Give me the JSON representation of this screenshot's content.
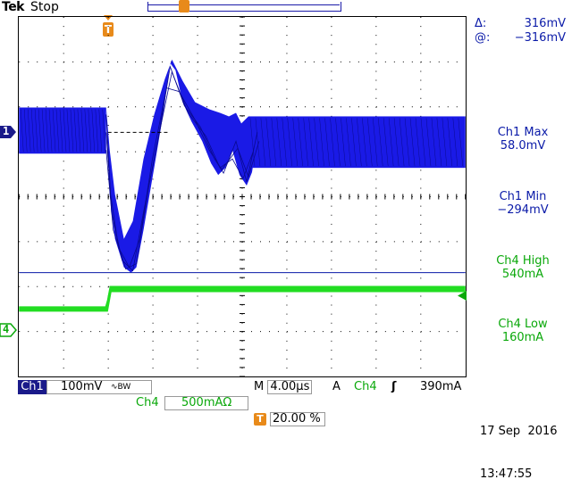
{
  "header": {
    "brand": "Tek",
    "acq_state": "Stop"
  },
  "cursor_readout": {
    "delta_symbol": "Δ:",
    "delta_value": "316mV",
    "at_symbol": "@:",
    "at_value": "−316mV"
  },
  "measurements": [
    {
      "label": "Ch1 Max",
      "value": "58.0mV",
      "color": "#0a1aa8"
    },
    {
      "label": "Ch1 Min",
      "value": "−294mV",
      "color": "#0a1aa8"
    },
    {
      "label": "Ch4 High",
      "value": "540mA",
      "color": "#0aa80a"
    },
    {
      "label": "Ch4 Low",
      "value": "160mA",
      "color": "#0aa80a"
    }
  ],
  "channel_markers": {
    "ch1": "1",
    "ch4": "4",
    "trigger": "T"
  },
  "bottom": {
    "ch1_label": "Ch1",
    "ch1_scale": "100mV",
    "ch1_bw_symbol": "∿BW",
    "timebase_prefix": "M",
    "timebase": "4.00µs",
    "trigger_mode": "A",
    "trigger_source": "Ch4",
    "trigger_slope": "ʃ",
    "trigger_level": "390mA",
    "ch4_label": "Ch4",
    "ch4_scale": "500mAΩ",
    "trig_pos_icon": "T",
    "trig_pos": "20.00 %",
    "date": "17 Sep  2016",
    "time": "13:47:55"
  },
  "colors": {
    "ch1": "#1a1ae6",
    "ch4": "#22dd22",
    "grid": "#000000"
  }
}
